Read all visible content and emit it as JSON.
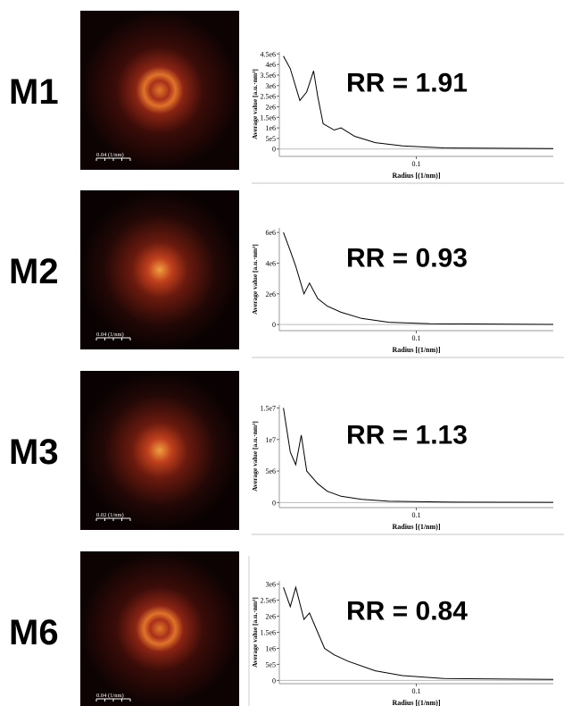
{
  "chart_data": [
    {
      "type": "line",
      "label": "M1",
      "scale_bar": "0.04 (1/nm)",
      "annotation": "RR = 1.91",
      "xlabel": "Radius [(1/nm)]",
      "ylabel": "Average value [a.u.·nm²]",
      "xlim": [
        0,
        0.2
      ],
      "xticks": [
        0.1
      ],
      "ylim": [
        -350000,
        4600000
      ],
      "yticks": [
        0,
        {
          "value": 500000,
          "label": "5e5"
        },
        {
          "value": 1000000,
          "label": "1e6"
        },
        {
          "value": 1500000,
          "label": "1.5e6"
        },
        {
          "value": 2000000,
          "label": "2e6"
        },
        {
          "value": 2500000,
          "label": "2.5e6"
        },
        {
          "value": 3000000,
          "label": "3e6"
        },
        {
          "value": 3500000,
          "label": "3.5e6"
        },
        {
          "value": 4000000,
          "label": "4e6"
        },
        {
          "value": 4500000,
          "label": "4.5e6"
        }
      ],
      "x": [
        0.003,
        0.008,
        0.015,
        0.02,
        0.025,
        0.028,
        0.032,
        0.04,
        0.045,
        0.055,
        0.07,
        0.09,
        0.12,
        0.2
      ],
      "series": [
        {
          "color": "#000000",
          "values": [
            4400000,
            3800000,
            2300000,
            2700000,
            3700000,
            2500000,
            1200000,
            900000,
            1000000,
            600000,
            300000,
            150000,
            50000,
            20000
          ]
        }
      ]
    },
    {
      "type": "line",
      "label": "M2",
      "scale_bar": "0.04 (1/nm)",
      "annotation": "RR = 0.93",
      "xlabel": "Radius [(1/nm)]",
      "ylabel": "Average value [a.u.·nm²]",
      "xlim": [
        0,
        0.2
      ],
      "xticks": [
        0.1
      ],
      "ylim": [
        -400000,
        6300000
      ],
      "yticks": [
        0,
        {
          "value": 2000000,
          "label": "2e6"
        },
        {
          "value": 4000000,
          "label": "4e6"
        },
        {
          "value": 6000000,
          "label": "6e6"
        }
      ],
      "x": [
        0.003,
        0.008,
        0.012,
        0.018,
        0.022,
        0.028,
        0.035,
        0.045,
        0.06,
        0.08,
        0.11,
        0.2
      ],
      "series": [
        {
          "color": "#000000",
          "values": [
            6000000,
            4800000,
            3800000,
            2000000,
            2700000,
            1700000,
            1200000,
            800000,
            400000,
            150000,
            50000,
            10000
          ]
        }
      ]
    },
    {
      "type": "line",
      "label": "M3",
      "scale_bar": "0.02 (1/nm)",
      "annotation": "RR = 1.13",
      "xlabel": "Radius [(1/nm)]",
      "ylabel": "Average value [a.u.·nm²]",
      "xlim": [
        0,
        0.2
      ],
      "xticks": [
        0.1
      ],
      "ylim": [
        -800000,
        15500000
      ],
      "yticks": [
        0,
        {
          "value": 5000000,
          "label": "5e6"
        },
        {
          "value": 10000000,
          "label": "1e7"
        },
        {
          "value": 15000000,
          "label": "1.5e7"
        }
      ],
      "x": [
        0.003,
        0.008,
        0.012,
        0.016,
        0.02,
        0.028,
        0.035,
        0.045,
        0.06,
        0.08,
        0.12,
        0.2
      ],
      "series": [
        {
          "color": "#000000",
          "values": [
            15000000,
            8000000,
            6000000,
            10700000,
            5000000,
            3000000,
            1800000,
            1000000,
            500000,
            200000,
            80000,
            30000
          ]
        }
      ]
    },
    {
      "type": "line",
      "label": "M6",
      "scale_bar": "0.04 (1/nm)",
      "annotation": "RR = 0.84",
      "xlabel": "Radius [(1/nm)]",
      "ylabel": "Average value [a.u.·nm²]",
      "xlim": [
        0,
        0.2
      ],
      "xticks": [
        0.1
      ],
      "ylim": [
        -100000,
        3100000
      ],
      "yticks": [
        0,
        {
          "value": 500000,
          "label": "5e5"
        },
        {
          "value": 1000000,
          "label": "1e6"
        },
        {
          "value": 1500000,
          "label": "1.5e6"
        },
        {
          "value": 2000000,
          "label": "2e6"
        },
        {
          "value": 2500000,
          "label": "2.5e6"
        },
        {
          "value": 3000000,
          "label": "3e6"
        }
      ],
      "x": [
        0.003,
        0.008,
        0.012,
        0.018,
        0.022,
        0.028,
        0.033,
        0.04,
        0.05,
        0.07,
        0.09,
        0.12,
        0.2
      ],
      "series": [
        {
          "color": "#000000",
          "values": [
            2900000,
            2300000,
            2900000,
            1900000,
            2100000,
            1500000,
            1000000,
            800000,
            600000,
            300000,
            150000,
            60000,
            30000
          ]
        }
      ]
    }
  ]
}
